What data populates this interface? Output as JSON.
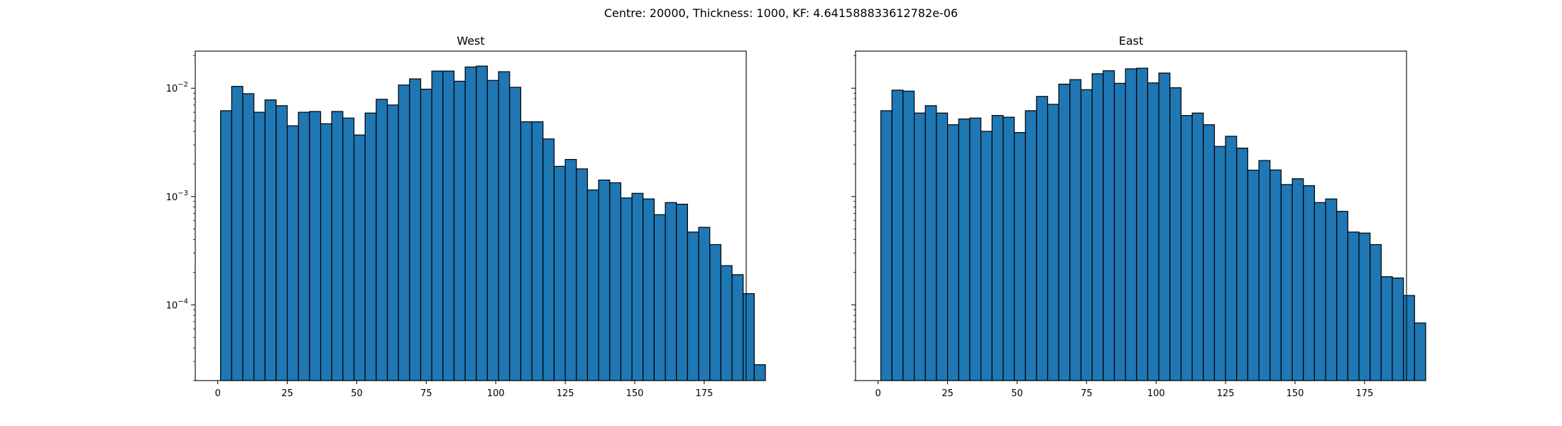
{
  "figure": {
    "suptitle": "Centre: 20000, Thickness: 1000, KF: 4.641588833612782e-06"
  },
  "chart_data": [
    {
      "type": "bar",
      "title": "West",
      "xlabel": "",
      "ylabel": "",
      "yscale": "log",
      "xlim": [
        -8.1,
        190.1
      ],
      "ylim": [
        2e-05,
        0.022
      ],
      "xticks": [
        0,
        25,
        50,
        75,
        100,
        125,
        150,
        175
      ],
      "yticks": [
        0.0001,
        0.001,
        0.01
      ],
      "ytick_labels": [
        "10^-4",
        "10^-3",
        "10^-2"
      ],
      "grid": false,
      "bar_color": "#1f77b4",
      "edge_color": "#000000",
      "bin_start": 1,
      "bin_width": 4,
      "values": [
        0.0062,
        0.0104,
        0.0089,
        0.006,
        0.0078,
        0.0069,
        0.0045,
        0.006,
        0.0061,
        0.0047,
        0.0061,
        0.0053,
        0.0037,
        0.0059,
        0.0079,
        0.007,
        0.0107,
        0.0122,
        0.0098,
        0.0144,
        0.0144,
        0.0116,
        0.0157,
        0.016,
        0.0118,
        0.0142,
        0.0102,
        0.0049,
        0.0049,
        0.0034,
        0.0019,
        0.0022,
        0.0018,
        0.00115,
        0.00142,
        0.00134,
        0.00097,
        0.00107,
        0.00095,
        0.00068,
        0.00088,
        0.00085,
        0.00047,
        0.00052,
        0.00036,
        0.00023,
        0.00019,
        0.000127,
        2.8e-05
      ]
    },
    {
      "type": "bar",
      "title": "East",
      "xlabel": "",
      "ylabel": "",
      "yscale": "log",
      "xlim": [
        -8.1,
        190.1
      ],
      "ylim": [
        2e-05,
        0.022
      ],
      "xticks": [
        0,
        25,
        50,
        75,
        100,
        125,
        150,
        175
      ],
      "yticks": [
        0.0001,
        0.001,
        0.01
      ],
      "ytick_labels": [],
      "grid": false,
      "bar_color": "#1f77b4",
      "edge_color": "#000000",
      "bin_start": 1,
      "bin_width": 4,
      "values": [
        0.0062,
        0.0096,
        0.0094,
        0.0059,
        0.0069,
        0.0059,
        0.0046,
        0.0052,
        0.0053,
        0.004,
        0.0056,
        0.0054,
        0.0039,
        0.0062,
        0.0084,
        0.0071,
        0.0109,
        0.012,
        0.0097,
        0.0136,
        0.0145,
        0.0111,
        0.0151,
        0.0153,
        0.0112,
        0.0138,
        0.0101,
        0.0056,
        0.0059,
        0.0046,
        0.0029,
        0.0036,
        0.0028,
        0.00175,
        0.00215,
        0.00176,
        0.00129,
        0.00146,
        0.00126,
        0.00088,
        0.00095,
        0.00073,
        0.00047,
        0.00046,
        0.00036,
        0.000182,
        0.000177,
        0.000122,
        6.8e-05
      ]
    }
  ]
}
